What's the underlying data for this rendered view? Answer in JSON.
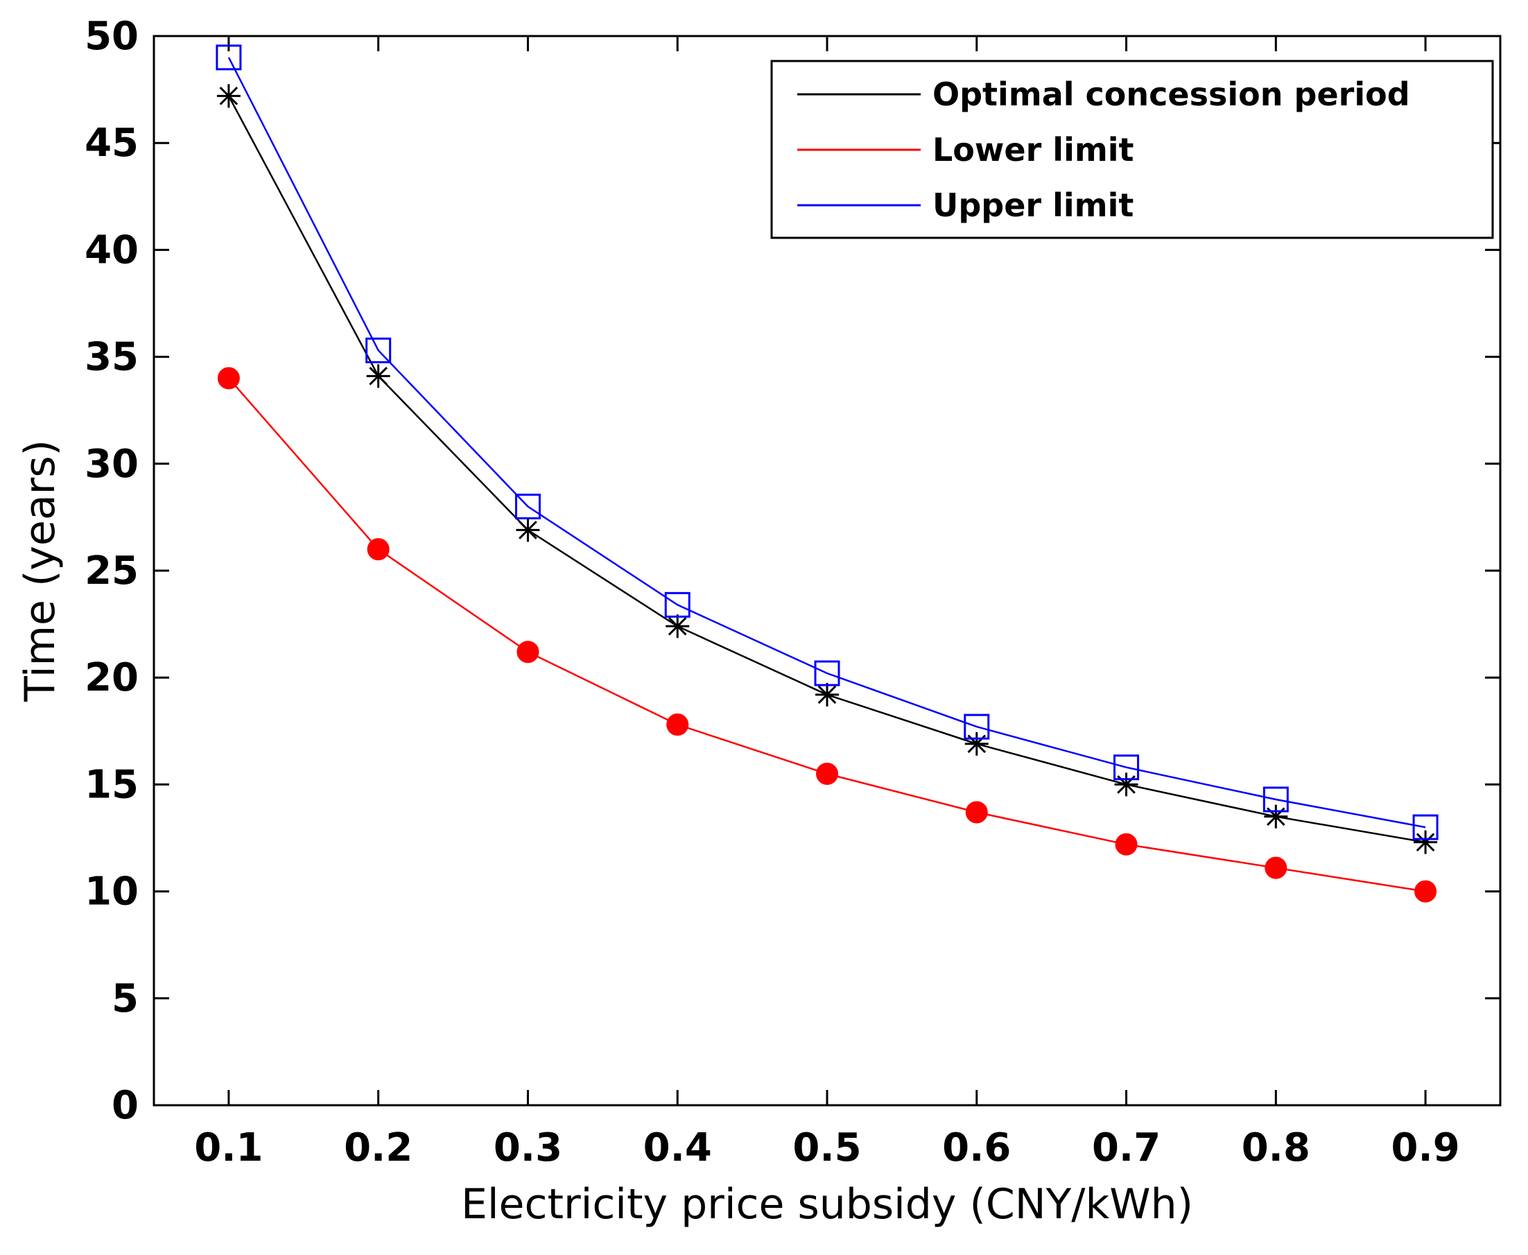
{
  "chart_data": {
    "type": "line",
    "title": "",
    "xlabel": "Electricity price subsidy (CNY/kWh)",
    "ylabel": "Time (years)",
    "xlim": [
      0.05,
      0.95
    ],
    "ylim": [
      0,
      50
    ],
    "x": [
      0.1,
      0.2,
      0.3,
      0.4,
      0.5,
      0.6,
      0.7,
      0.8,
      0.9
    ],
    "x_tick_labels": [
      "0.1",
      "0.2",
      "0.3",
      "0.4",
      "0.5",
      "0.6",
      "0.7",
      "0.8",
      "0.9"
    ],
    "y_ticks": [
      0,
      5,
      10,
      15,
      20,
      25,
      30,
      35,
      40,
      45,
      50
    ],
    "y_tick_labels": [
      "0",
      "5",
      "10",
      "15",
      "20",
      "25",
      "30",
      "35",
      "40",
      "45",
      "50"
    ],
    "grid": false,
    "legend_position": "top-right",
    "series": [
      {
        "name": "Optimal concession period",
        "color": "#000000",
        "marker": "asterisk",
        "values": [
          47.2,
          34.1,
          26.9,
          22.4,
          19.2,
          16.9,
          15.0,
          13.5,
          12.3
        ]
      },
      {
        "name": "Lower limit",
        "color": "#ff0000",
        "marker": "filled-circle",
        "values": [
          34.0,
          26.0,
          21.2,
          17.8,
          15.5,
          13.7,
          12.2,
          11.1,
          10.0
        ]
      },
      {
        "name": "Upper limit",
        "color": "#0000ff",
        "marker": "square",
        "values": [
          49.0,
          35.3,
          28.0,
          23.4,
          20.2,
          17.7,
          15.8,
          14.3,
          13.0
        ]
      }
    ]
  }
}
